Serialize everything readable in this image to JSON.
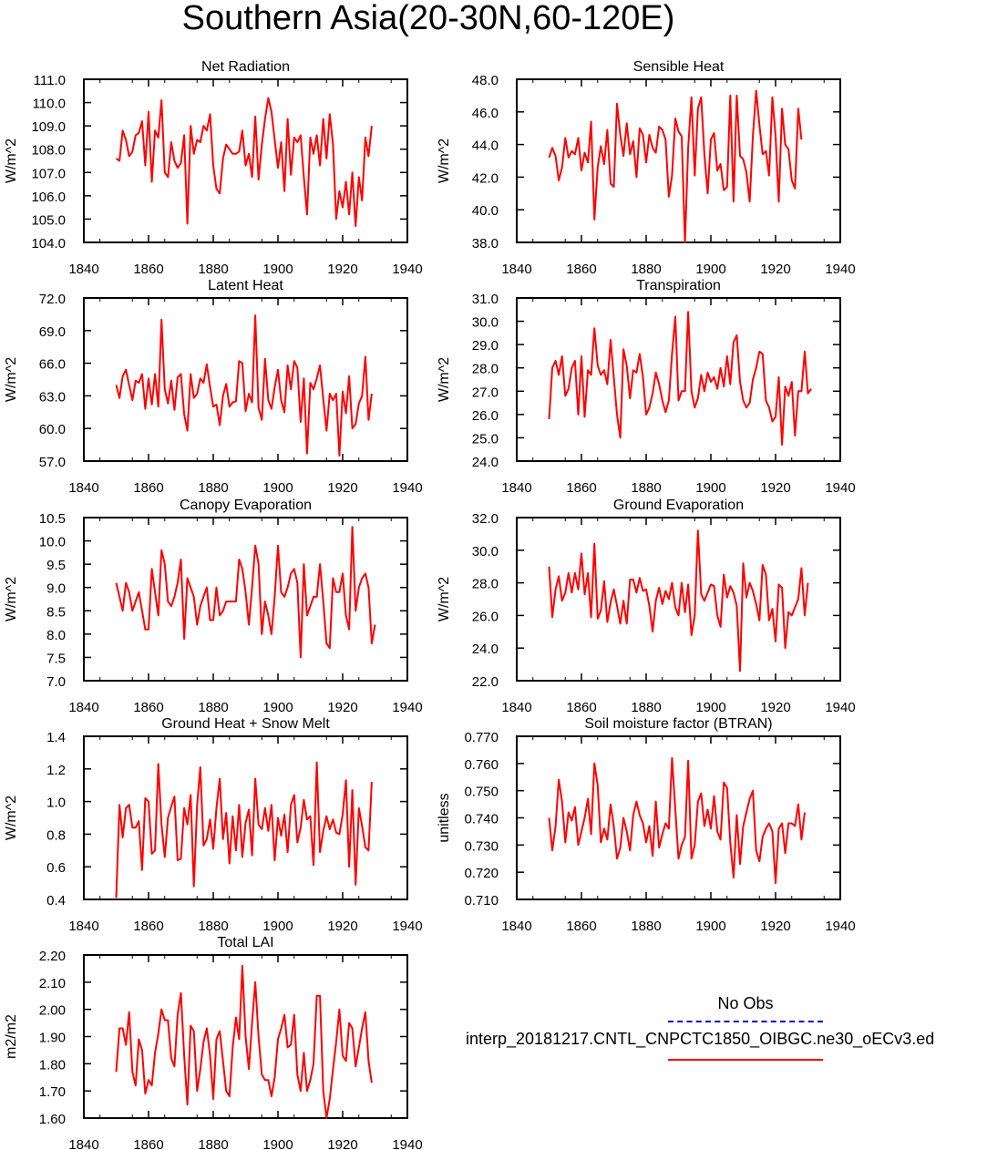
{
  "title": "Southern Asia(20-30N,60-120E)",
  "legend": {
    "title": "No Obs",
    "label": "interp_20181217.CNTL_CNPCTC1850_OIBGC.ne30_oECv3.ed",
    "obs_color": "#0000cc",
    "model_color": "#ff0000"
  },
  "chart_data": [
    {
      "type": "line",
      "title": "Net Radiation",
      "ylabel": "W/m^2",
      "xlim": [
        1840,
        1940
      ],
      "ylim": [
        104.0,
        111.0
      ],
      "xticks": [
        "1840",
        "1860",
        "1880",
        "1900",
        "1920",
        "1940"
      ],
      "yticks": [
        "104.0",
        "105.0",
        "106.0",
        "107.0",
        "108.0",
        "109.0",
        "110.0",
        "111.0"
      ],
      "x_start": 1850,
      "series": [
        {
          "color": "#ff0000",
          "values": [
            107.6,
            107.5,
            108.8,
            108.4,
            107.7,
            107.9,
            108.6,
            108.7,
            109.2,
            107.3,
            109.6,
            106.6,
            108.8,
            108.5,
            110.1,
            107.0,
            106.8,
            108.3,
            107.5,
            107.2,
            107.4,
            108.6,
            104.8,
            109.0,
            107.8,
            108.4,
            108.3,
            109.0,
            108.8,
            109.5,
            107.3,
            106.3,
            106.1,
            107.6,
            108.2,
            108.0,
            107.8,
            107.8,
            107.9,
            108.8,
            107.3,
            107.8,
            106.8,
            109.4,
            106.7,
            108.2,
            109.3,
            110.2,
            109.6,
            108.4,
            107.2,
            108.3,
            106.2,
            109.3,
            106.9,
            108.5,
            108.3,
            108.6,
            106.8,
            105.2,
            108.5,
            107.8,
            108.6,
            107.3,
            109.3,
            107.6,
            109.5,
            108.2,
            105.0,
            106.2,
            105.5,
            106.6,
            105.2,
            107.0,
            104.7,
            106.8,
            105.8,
            108.5,
            107.7,
            109.0
          ]
        }
      ]
    },
    {
      "type": "line",
      "title": "Sensible Heat",
      "ylabel": "W/m^2",
      "xlim": [
        1840,
        1940
      ],
      "ylim": [
        38.0,
        48.0
      ],
      "xticks": [
        "1840",
        "1860",
        "1880",
        "1900",
        "1920",
        "1940"
      ],
      "yticks": [
        "38.0",
        "40.0",
        "42.0",
        "44.0",
        "46.0",
        "48.0"
      ],
      "x_start": 1850,
      "series": [
        {
          "color": "#ff0000",
          "values": [
            43.2,
            43.8,
            43.3,
            41.8,
            42.6,
            44.4,
            43.2,
            43.6,
            43.4,
            44.4,
            42.4,
            43.5,
            42.9,
            45.4,
            39.4,
            42.6,
            43.9,
            42.8,
            44.9,
            41.6,
            41.4,
            46.5,
            44.6,
            43.3,
            45.3,
            43.4,
            44.2,
            42.0,
            45.0,
            44.6,
            42.9,
            44.6,
            43.8,
            43.5,
            45.1,
            44.9,
            44.3,
            40.8,
            42.1,
            45.6,
            44.8,
            44.5,
            38.0,
            43.8,
            46.9,
            42.1,
            46.2,
            46.9,
            43.4,
            41.0,
            44.3,
            44.7,
            42.4,
            42.8,
            41.2,
            41.4,
            47.0,
            40.5,
            47.0,
            43.3,
            43.1,
            42.3,
            40.5,
            44.5,
            47.3,
            45.2,
            43.4,
            43.6,
            42.1,
            46.9,
            44.5,
            40.5,
            46.2,
            44.0,
            43.7,
            41.8,
            41.3,
            46.2,
            44.3
          ]
        }
      ]
    },
    {
      "type": "line",
      "title": "Latent Heat",
      "ylabel": "W/m^2",
      "xlim": [
        1840,
        1940
      ],
      "ylim": [
        57.0,
        72.0
      ],
      "xticks": [
        "1840",
        "1860",
        "1880",
        "1900",
        "1920",
        "1940"
      ],
      "yticks": [
        "57.0",
        "60.0",
        "63.0",
        "66.0",
        "69.0",
        "72.0"
      ],
      "x_start": 1850,
      "series": [
        {
          "color": "#ff0000",
          "values": [
            64.0,
            62.8,
            64.8,
            65.4,
            64.0,
            62.6,
            64.4,
            64.2,
            65.0,
            61.8,
            64.6,
            62.2,
            65.0,
            62.0,
            70.0,
            63.6,
            62.3,
            64.4,
            61.7,
            64.7,
            65.0,
            61.3,
            59.8,
            65.0,
            62.8,
            63.2,
            64.6,
            64.2,
            65.9,
            63.8,
            62.0,
            62.2,
            60.3,
            63.0,
            64.1,
            62.0,
            62.4,
            62.5,
            66.2,
            66.0,
            61.6,
            63.2,
            62.4,
            70.4,
            61.9,
            60.8,
            66.4,
            62.6,
            61.8,
            63.8,
            65.4,
            62.6,
            61.5,
            65.8,
            63.6,
            66.2,
            65.6,
            60.6,
            64.6,
            57.7,
            64.2,
            63.6,
            64.6,
            65.8,
            62.7,
            59.8,
            63.2,
            62.6,
            63.2,
            57.5,
            63.4,
            61.4,
            64.8,
            60.0,
            60.4,
            62.3,
            63.0,
            66.6,
            60.8,
            63.2
          ]
        }
      ]
    },
    {
      "type": "line",
      "title": "Transpiration",
      "ylabel": "W/m^2",
      "xlim": [
        1840,
        1940
      ],
      "ylim": [
        24.0,
        31.0
      ],
      "xticks": [
        "1840",
        "1860",
        "1880",
        "1900",
        "1920",
        "1940"
      ],
      "yticks": [
        "24.0",
        "25.0",
        "26.0",
        "27.0",
        "28.0",
        "29.0",
        "30.0",
        "31.0"
      ],
      "x_start": 1850,
      "series": [
        {
          "color": "#ff0000",
          "values": [
            25.8,
            28.0,
            28.3,
            27.7,
            28.5,
            26.8,
            27.1,
            28.0,
            28.3,
            26.0,
            28.5,
            25.9,
            27.9,
            27.7,
            29.7,
            28.1,
            27.7,
            27.9,
            27.3,
            29.2,
            27.6,
            26.0,
            25.0,
            28.8,
            28.1,
            26.7,
            27.9,
            27.8,
            28.6,
            27.6,
            26.0,
            26.3,
            26.9,
            27.8,
            27.3,
            26.6,
            26.1,
            26.6,
            28.6,
            30.2,
            26.6,
            27.0,
            27.0,
            30.4,
            27.0,
            26.3,
            26.7,
            27.7,
            27.0,
            27.8,
            27.4,
            27.6,
            27.1,
            28.0,
            27.2,
            28.5,
            27.3,
            29.1,
            29.4,
            27.4,
            26.6,
            26.3,
            26.5,
            27.5,
            28.0,
            28.7,
            28.6,
            26.6,
            26.3,
            25.7,
            25.9,
            27.6,
            24.7,
            27.2,
            26.8,
            27.4,
            25.1,
            27.0,
            27.0,
            28.7,
            26.9,
            27.1
          ]
        }
      ]
    },
    {
      "type": "line",
      "title": "Canopy Evaporation",
      "ylabel": "W/m^2",
      "xlim": [
        1840,
        1940
      ],
      "ylim": [
        7.0,
        10.5
      ],
      "xticks": [
        "1840",
        "1860",
        "1880",
        "1900",
        "1920",
        "1940"
      ],
      "yticks": [
        "7.0",
        "7.5",
        "8.0",
        "8.5",
        "9.0",
        "9.5",
        "10.0",
        "10.5"
      ],
      "x_start": 1850,
      "series": [
        {
          "color": "#ff0000",
          "values": [
            9.1,
            8.8,
            8.5,
            9.1,
            8.9,
            8.5,
            8.7,
            8.9,
            8.5,
            8.1,
            8.1,
            9.4,
            8.9,
            8.4,
            9.8,
            9.5,
            8.7,
            8.6,
            8.8,
            9.1,
            9.6,
            7.9,
            9.2,
            9.0,
            8.8,
            8.2,
            8.6,
            8.8,
            9.0,
            8.3,
            8.3,
            9.0,
            8.4,
            8.5,
            8.7,
            8.7,
            8.7,
            8.7,
            9.6,
            9.4,
            8.9,
            8.2,
            9.0,
            9.9,
            9.5,
            8.0,
            8.7,
            8.4,
            8.0,
            8.8,
            9.9,
            8.9,
            8.8,
            9.0,
            9.3,
            9.4,
            9.1,
            7.5,
            9.5,
            8.4,
            8.6,
            8.8,
            8.8,
            9.5,
            8.7,
            7.8,
            7.7,
            9.2,
            8.9,
            8.9,
            9.3,
            8.4,
            8.1,
            10.3,
            8.5,
            9.0,
            9.2,
            9.3,
            9.0,
            7.8,
            8.2
          ]
        }
      ]
    },
    {
      "type": "line",
      "title": "Ground Evaporation",
      "ylabel": "W/m^2",
      "xlim": [
        1840,
        1940
      ],
      "ylim": [
        22.0,
        32.0
      ],
      "xticks": [
        "1840",
        "1860",
        "1880",
        "1900",
        "1920",
        "1940"
      ],
      "yticks": [
        "22.0",
        "24.0",
        "26.0",
        "28.0",
        "30.0",
        "32.0"
      ],
      "x_start": 1850,
      "series": [
        {
          "color": "#ff0000",
          "values": [
            29.0,
            25.9,
            27.6,
            28.4,
            26.9,
            27.4,
            28.6,
            27.4,
            28.6,
            27.6,
            29.8,
            27.3,
            28.6,
            25.9,
            30.4,
            25.8,
            26.3,
            28.1,
            25.6,
            26.8,
            27.6,
            26.6,
            25.5,
            26.9,
            25.5,
            28.2,
            28.2,
            27.4,
            28.3,
            27.5,
            27.6,
            26.6,
            25.0,
            26.9,
            27.7,
            26.7,
            27.5,
            27.0,
            28.0,
            26.5,
            26.0,
            28.0,
            26.2,
            27.9,
            24.8,
            26.0,
            31.2,
            27.3,
            26.9,
            27.4,
            27.9,
            27.8,
            26.0,
            25.3,
            28.5,
            27.1,
            27.8,
            27.4,
            26.6,
            22.6,
            29.2,
            27.1,
            28.0,
            27.5,
            26.7,
            25.7,
            29.1,
            28.5,
            25.7,
            26.4,
            24.4,
            27.9,
            27.7,
            24.0,
            26.2,
            26.0,
            26.5,
            27.0,
            28.9,
            26.0,
            28.0
          ]
        }
      ]
    },
    {
      "type": "line",
      "title": "Ground Heat + Snow Melt",
      "ylabel": "W/m^2",
      "xlim": [
        1840,
        1940
      ],
      "ylim": [
        0.4,
        1.4
      ],
      "xticks": [
        "1840",
        "1860",
        "1880",
        "1900",
        "1920",
        "1940"
      ],
      "yticks": [
        "0.4",
        "0.6",
        "0.8",
        "1.0",
        "1.2",
        "1.4"
      ],
      "x_start": 1850,
      "series": [
        {
          "color": "#ff0000",
          "values": [
            0.41,
            0.98,
            0.78,
            0.96,
            0.98,
            0.84,
            0.84,
            0.88,
            0.58,
            1.02,
            1.0,
            0.68,
            0.7,
            1.23,
            0.86,
            0.66,
            0.9,
            0.97,
            1.03,
            0.64,
            0.65,
            0.96,
            0.86,
            1.04,
            0.48,
            0.98,
            1.21,
            0.73,
            0.77,
            0.89,
            0.71,
            0.96,
            1.14,
            0.77,
            0.93,
            0.62,
            0.91,
            0.7,
            0.98,
            0.66,
            0.87,
            0.95,
            0.67,
            1.14,
            0.86,
            0.83,
            0.96,
            0.82,
            0.98,
            0.64,
            0.9,
            0.79,
            0.92,
            0.69,
            0.98,
            1.04,
            0.75,
            0.84,
            1.01,
            0.89,
            0.91,
            0.61,
            1.24,
            0.69,
            0.82,
            0.91,
            0.83,
            0.89,
            0.81,
            0.8,
            0.92,
            1.13,
            0.6,
            1.07,
            0.49,
            0.96,
            0.85,
            0.72,
            0.7,
            1.12
          ]
        }
      ]
    },
    {
      "type": "line",
      "title": "Soil moisture factor (BTRAN)",
      "ylabel": "unitless",
      "xlim": [
        1840,
        1940
      ],
      "ylim": [
        0.71,
        0.77
      ],
      "xticks": [
        "1840",
        "1860",
        "1880",
        "1900",
        "1920",
        "1940"
      ],
      "yticks": [
        "0.710",
        "0.720",
        "0.730",
        "0.740",
        "0.750",
        "0.760",
        "0.770"
      ],
      "x_start": 1850,
      "series": [
        {
          "color": "#ff0000",
          "values": [
            0.74,
            0.728,
            0.737,
            0.754,
            0.746,
            0.731,
            0.742,
            0.739,
            0.744,
            0.73,
            0.735,
            0.74,
            0.747,
            0.734,
            0.76,
            0.752,
            0.731,
            0.736,
            0.732,
            0.745,
            0.737,
            0.725,
            0.729,
            0.74,
            0.735,
            0.728,
            0.741,
            0.746,
            0.741,
            0.738,
            0.731,
            0.737,
            0.726,
            0.746,
            0.729,
            0.734,
            0.738,
            0.736,
            0.762,
            0.743,
            0.725,
            0.73,
            0.733,
            0.761,
            0.725,
            0.73,
            0.746,
            0.749,
            0.737,
            0.743,
            0.736,
            0.748,
            0.735,
            0.732,
            0.753,
            0.751,
            0.731,
            0.718,
            0.741,
            0.723,
            0.737,
            0.742,
            0.747,
            0.75,
            0.728,
            0.724,
            0.733,
            0.736,
            0.738,
            0.735,
            0.716,
            0.736,
            0.738,
            0.727,
            0.738,
            0.738,
            0.737,
            0.745,
            0.732,
            0.742
          ]
        }
      ]
    },
    {
      "type": "line",
      "title": "Total LAI",
      "ylabel": "m2/m2",
      "xlim": [
        1840,
        1940
      ],
      "ylim": [
        1.6,
        2.2
      ],
      "xticks": [
        "1840",
        "1860",
        "1880",
        "1900",
        "1920",
        "1940"
      ],
      "yticks": [
        "1.60",
        "1.70",
        "1.80",
        "1.90",
        "2.00",
        "2.10",
        "2.20"
      ],
      "x_start": 1850,
      "series": [
        {
          "color": "#ff0000",
          "values": [
            1.77,
            1.93,
            1.93,
            1.87,
            1.99,
            1.77,
            1.72,
            1.89,
            1.85,
            1.69,
            1.74,
            1.72,
            1.84,
            1.91,
            2.0,
            1.96,
            1.96,
            1.82,
            1.79,
            1.98,
            2.06,
            1.83,
            1.65,
            1.94,
            1.92,
            1.7,
            1.78,
            1.88,
            1.93,
            1.83,
            1.67,
            1.89,
            1.92,
            1.81,
            1.7,
            1.68,
            1.86,
            1.97,
            1.89,
            2.16,
            1.9,
            1.78,
            1.95,
            2.1,
            1.9,
            1.76,
            1.74,
            1.74,
            1.68,
            1.75,
            1.89,
            1.93,
            1.98,
            1.86,
            1.87,
            1.98,
            1.76,
            1.7,
            1.84,
            1.7,
            1.74,
            1.8,
            2.05,
            2.05,
            1.7,
            1.6,
            1.67,
            1.78,
            1.88,
            2.0,
            1.83,
            1.81,
            1.95,
            1.93,
            1.79,
            1.86,
            1.93,
            1.99,
            1.81,
            1.73
          ]
        }
      ]
    }
  ]
}
